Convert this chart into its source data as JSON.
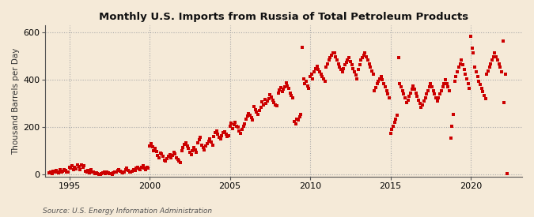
{
  "title": "Monthly U.S. Imports from Russia of Total Petroleum Products",
  "ylabel": "Thousand Barrels per Day",
  "source": "Source: U.S. Energy Information Administration",
  "bg_color": "#f5ead8",
  "plot_bg_color": "#f5ead8",
  "marker_color": "#cc0000",
  "grid_color": "#aaaaaa",
  "spine_color": "#555555",
  "ylim": [
    -10,
    630
  ],
  "yticks": [
    0,
    200,
    400,
    600
  ],
  "xlim": [
    1993.5,
    2023.2
  ],
  "xticks": [
    1995,
    2000,
    2005,
    2010,
    2015,
    2020
  ],
  "points": [
    [
      1993,
      10,
      5
    ],
    [
      1993,
      11,
      8
    ],
    [
      1993,
      12,
      3
    ],
    [
      1994,
      1,
      12
    ],
    [
      1994,
      2,
      8
    ],
    [
      1994,
      3,
      15
    ],
    [
      1994,
      4,
      10
    ],
    [
      1994,
      5,
      5
    ],
    [
      1994,
      6,
      18
    ],
    [
      1994,
      7,
      8
    ],
    [
      1994,
      8,
      12
    ],
    [
      1994,
      9,
      20
    ],
    [
      1994,
      10,
      15
    ],
    [
      1994,
      11,
      10
    ],
    [
      1994,
      12,
      8
    ],
    [
      1995,
      1,
      30
    ],
    [
      1995,
      2,
      25
    ],
    [
      1995,
      3,
      35
    ],
    [
      1995,
      4,
      20
    ],
    [
      1995,
      5,
      28
    ],
    [
      1995,
      6,
      22
    ],
    [
      1995,
      7,
      40
    ],
    [
      1995,
      8,
      32
    ],
    [
      1995,
      9,
      18
    ],
    [
      1995,
      10,
      38
    ],
    [
      1995,
      11,
      28
    ],
    [
      1995,
      12,
      35
    ],
    [
      1996,
      1,
      12
    ],
    [
      1996,
      2,
      8
    ],
    [
      1996,
      3,
      15
    ],
    [
      1996,
      4,
      5
    ],
    [
      1996,
      5,
      18
    ],
    [
      1996,
      6,
      10
    ],
    [
      1996,
      7,
      8
    ],
    [
      1996,
      8,
      3
    ],
    [
      1996,
      9,
      5
    ],
    [
      1996,
      10,
      2
    ],
    [
      1996,
      11,
      0
    ],
    [
      1996,
      12,
      0
    ],
    [
      1997,
      1,
      2
    ],
    [
      1997,
      2,
      5
    ],
    [
      1997,
      3,
      8
    ],
    [
      1997,
      4,
      3
    ],
    [
      1997,
      5,
      10
    ],
    [
      1997,
      6,
      6
    ],
    [
      1997,
      7,
      4
    ],
    [
      1997,
      8,
      2
    ],
    [
      1997,
      9,
      1
    ],
    [
      1997,
      10,
      5
    ],
    [
      1997,
      11,
      8
    ],
    [
      1997,
      12,
      10
    ],
    [
      1998,
      1,
      15
    ],
    [
      1998,
      2,
      20
    ],
    [
      1998,
      3,
      12
    ],
    [
      1998,
      4,
      8
    ],
    [
      1998,
      5,
      5
    ],
    [
      1998,
      6,
      10
    ],
    [
      1998,
      7,
      18
    ],
    [
      1998,
      8,
      25
    ],
    [
      1998,
      9,
      15
    ],
    [
      1998,
      10,
      10
    ],
    [
      1998,
      11,
      8
    ],
    [
      1998,
      12,
      12
    ],
    [
      1999,
      1,
      20
    ],
    [
      1999,
      2,
      15
    ],
    [
      1999,
      3,
      25
    ],
    [
      1999,
      4,
      30
    ],
    [
      1999,
      5,
      22
    ],
    [
      1999,
      6,
      18
    ],
    [
      1999,
      7,
      28
    ],
    [
      1999,
      8,
      35
    ],
    [
      1999,
      9,
      25
    ],
    [
      1999,
      10,
      20
    ],
    [
      1999,
      11,
      30
    ],
    [
      1999,
      12,
      25
    ],
    [
      2000,
      1,
      120
    ],
    [
      2000,
      2,
      130
    ],
    [
      2000,
      3,
      115
    ],
    [
      2000,
      4,
      100
    ],
    [
      2000,
      5,
      110
    ],
    [
      2000,
      6,
      95
    ],
    [
      2000,
      7,
      80
    ],
    [
      2000,
      8,
      70
    ],
    [
      2000,
      9,
      90
    ],
    [
      2000,
      10,
      85
    ],
    [
      2000,
      11,
      75
    ],
    [
      2000,
      12,
      60
    ],
    [
      2001,
      1,
      55
    ],
    [
      2001,
      2,
      65
    ],
    [
      2001,
      3,
      75
    ],
    [
      2001,
      4,
      82
    ],
    [
      2001,
      5,
      68
    ],
    [
      2001,
      6,
      78
    ],
    [
      2001,
      7,
      92
    ],
    [
      2001,
      8,
      85
    ],
    [
      2001,
      9,
      70
    ],
    [
      2001,
      10,
      62
    ],
    [
      2001,
      11,
      55
    ],
    [
      2001,
      12,
      50
    ],
    [
      2002,
      1,
      100
    ],
    [
      2002,
      2,
      112
    ],
    [
      2002,
      3,
      125
    ],
    [
      2002,
      4,
      132
    ],
    [
      2002,
      5,
      118
    ],
    [
      2002,
      6,
      108
    ],
    [
      2002,
      7,
      92
    ],
    [
      2002,
      8,
      82
    ],
    [
      2002,
      9,
      98
    ],
    [
      2002,
      10,
      112
    ],
    [
      2002,
      11,
      102
    ],
    [
      2002,
      12,
      92
    ],
    [
      2003,
      1,
      132
    ],
    [
      2003,
      2,
      145
    ],
    [
      2003,
      3,
      155
    ],
    [
      2003,
      4,
      122
    ],
    [
      2003,
      5,
      112
    ],
    [
      2003,
      6,
      102
    ],
    [
      2003,
      7,
      118
    ],
    [
      2003,
      8,
      128
    ],
    [
      2003,
      9,
      138
    ],
    [
      2003,
      10,
      148
    ],
    [
      2003,
      11,
      135
    ],
    [
      2003,
      12,
      122
    ],
    [
      2004,
      1,
      158
    ],
    [
      2004,
      2,
      175
    ],
    [
      2004,
      3,
      182
    ],
    [
      2004,
      4,
      168
    ],
    [
      2004,
      5,
      155
    ],
    [
      2004,
      6,
      148
    ],
    [
      2004,
      7,
      162
    ],
    [
      2004,
      8,
      175
    ],
    [
      2004,
      9,
      178
    ],
    [
      2004,
      10,
      168
    ],
    [
      2004,
      11,
      158
    ],
    [
      2004,
      12,
      162
    ],
    [
      2005,
      1,
      202
    ],
    [
      2005,
      2,
      215
    ],
    [
      2005,
      3,
      192
    ],
    [
      2005,
      4,
      208
    ],
    [
      2005,
      5,
      218
    ],
    [
      2005,
      6,
      202
    ],
    [
      2005,
      7,
      198
    ],
    [
      2005,
      8,
      182
    ],
    [
      2005,
      9,
      172
    ],
    [
      2005,
      10,
      188
    ],
    [
      2005,
      11,
      202
    ],
    [
      2005,
      12,
      212
    ],
    [
      2006,
      1,
      232
    ],
    [
      2006,
      2,
      245
    ],
    [
      2006,
      3,
      255
    ],
    [
      2006,
      4,
      248
    ],
    [
      2006,
      5,
      238
    ],
    [
      2006,
      6,
      228
    ],
    [
      2006,
      7,
      285
    ],
    [
      2006,
      8,
      272
    ],
    [
      2006,
      9,
      262
    ],
    [
      2006,
      10,
      252
    ],
    [
      2006,
      11,
      268
    ],
    [
      2006,
      12,
      282
    ],
    [
      2007,
      1,
      305
    ],
    [
      2007,
      2,
      292
    ],
    [
      2007,
      3,
      315
    ],
    [
      2007,
      4,
      298
    ],
    [
      2007,
      5,
      308
    ],
    [
      2007,
      6,
      320
    ],
    [
      2007,
      7,
      335
    ],
    [
      2007,
      8,
      325
    ],
    [
      2007,
      9,
      312
    ],
    [
      2007,
      10,
      302
    ],
    [
      2007,
      11,
      292
    ],
    [
      2007,
      12,
      288
    ],
    [
      2008,
      1,
      342
    ],
    [
      2008,
      2,
      355
    ],
    [
      2008,
      3,
      365
    ],
    [
      2008,
      4,
      348
    ],
    [
      2008,
      5,
      358
    ],
    [
      2008,
      6,
      368
    ],
    [
      2008,
      7,
      385
    ],
    [
      2008,
      8,
      372
    ],
    [
      2008,
      9,
      362
    ],
    [
      2008,
      10,
      342
    ],
    [
      2008,
      11,
      332
    ],
    [
      2008,
      12,
      322
    ],
    [
      2009,
      1,
      222
    ],
    [
      2009,
      2,
      212
    ],
    [
      2009,
      3,
      232
    ],
    [
      2009,
      4,
      228
    ],
    [
      2009,
      5,
      242
    ],
    [
      2009,
      6,
      252
    ],
    [
      2009,
      7,
      535
    ],
    [
      2009,
      8,
      402
    ],
    [
      2009,
      9,
      382
    ],
    [
      2009,
      10,
      392
    ],
    [
      2009,
      11,
      372
    ],
    [
      2009,
      12,
      362
    ],
    [
      2010,
      1,
      412
    ],
    [
      2010,
      2,
      422
    ],
    [
      2010,
      3,
      402
    ],
    [
      2010,
      4,
      432
    ],
    [
      2010,
      5,
      448
    ],
    [
      2010,
      6,
      458
    ],
    [
      2010,
      7,
      442
    ],
    [
      2010,
      8,
      432
    ],
    [
      2010,
      9,
      422
    ],
    [
      2010,
      10,
      412
    ],
    [
      2010,
      11,
      402
    ],
    [
      2010,
      12,
      392
    ],
    [
      2011,
      1,
      452
    ],
    [
      2011,
      2,
      465
    ],
    [
      2011,
      3,
      482
    ],
    [
      2011,
      4,
      492
    ],
    [
      2011,
      5,
      502
    ],
    [
      2011,
      6,
      512
    ],
    [
      2011,
      7,
      512
    ],
    [
      2011,
      8,
      498
    ],
    [
      2011,
      9,
      482
    ],
    [
      2011,
      10,
      468
    ],
    [
      2011,
      11,
      452
    ],
    [
      2011,
      12,
      442
    ],
    [
      2012,
      1,
      432
    ],
    [
      2012,
      2,
      445
    ],
    [
      2012,
      3,
      462
    ],
    [
      2012,
      4,
      472
    ],
    [
      2012,
      5,
      482
    ],
    [
      2012,
      6,
      492
    ],
    [
      2012,
      7,
      478
    ],
    [
      2012,
      8,
      462
    ],
    [
      2012,
      9,
      448
    ],
    [
      2012,
      10,
      432
    ],
    [
      2012,
      11,
      418
    ],
    [
      2012,
      12,
      402
    ],
    [
      2013,
      1,
      442
    ],
    [
      2013,
      2,
      462
    ],
    [
      2013,
      3,
      482
    ],
    [
      2013,
      4,
      492
    ],
    [
      2013,
      5,
      502
    ],
    [
      2013,
      6,
      512
    ],
    [
      2013,
      7,
      498
    ],
    [
      2013,
      8,
      482
    ],
    [
      2013,
      9,
      468
    ],
    [
      2013,
      10,
      452
    ],
    [
      2013,
      11,
      438
    ],
    [
      2013,
      12,
      422
    ],
    [
      2014,
      1,
      352
    ],
    [
      2014,
      2,
      365
    ],
    [
      2014,
      3,
      382
    ],
    [
      2014,
      4,
      392
    ],
    [
      2014,
      5,
      402
    ],
    [
      2014,
      6,
      412
    ],
    [
      2014,
      7,
      398
    ],
    [
      2014,
      8,
      382
    ],
    [
      2014,
      9,
      368
    ],
    [
      2014,
      10,
      352
    ],
    [
      2014,
      11,
      338
    ],
    [
      2014,
      12,
      322
    ],
    [
      2015,
      1,
      172
    ],
    [
      2015,
      2,
      188
    ],
    [
      2015,
      3,
      202
    ],
    [
      2015,
      4,
      218
    ],
    [
      2015,
      5,
      232
    ],
    [
      2015,
      6,
      248
    ],
    [
      2015,
      7,
      492
    ],
    [
      2015,
      8,
      382
    ],
    [
      2015,
      9,
      368
    ],
    [
      2015,
      10,
      352
    ],
    [
      2015,
      11,
      338
    ],
    [
      2015,
      12,
      322
    ],
    [
      2016,
      1,
      302
    ],
    [
      2016,
      2,
      312
    ],
    [
      2016,
      3,
      328
    ],
    [
      2016,
      4,
      342
    ],
    [
      2016,
      5,
      358
    ],
    [
      2016,
      6,
      372
    ],
    [
      2016,
      7,
      358
    ],
    [
      2016,
      8,
      342
    ],
    [
      2016,
      9,
      328
    ],
    [
      2016,
      10,
      312
    ],
    [
      2016,
      11,
      298
    ],
    [
      2016,
      12,
      282
    ],
    [
      2017,
      1,
      292
    ],
    [
      2017,
      2,
      308
    ],
    [
      2017,
      3,
      322
    ],
    [
      2017,
      4,
      338
    ],
    [
      2017,
      5,
      352
    ],
    [
      2017,
      6,
      368
    ],
    [
      2017,
      7,
      382
    ],
    [
      2017,
      8,
      368
    ],
    [
      2017,
      9,
      352
    ],
    [
      2017,
      10,
      338
    ],
    [
      2017,
      11,
      322
    ],
    [
      2017,
      12,
      308
    ],
    [
      2018,
      1,
      322
    ],
    [
      2018,
      2,
      338
    ],
    [
      2018,
      3,
      352
    ],
    [
      2018,
      4,
      368
    ],
    [
      2018,
      5,
      382
    ],
    [
      2018,
      6,
      398
    ],
    [
      2018,
      7,
      382
    ],
    [
      2018,
      8,
      368
    ],
    [
      2018,
      9,
      352
    ],
    [
      2018,
      10,
      152
    ],
    [
      2018,
      11,
      202
    ],
    [
      2018,
      12,
      252
    ],
    [
      2019,
      1,
      392
    ],
    [
      2019,
      2,
      412
    ],
    [
      2019,
      3,
      432
    ],
    [
      2019,
      4,
      452
    ],
    [
      2019,
      5,
      468
    ],
    [
      2019,
      6,
      482
    ],
    [
      2019,
      7,
      462
    ],
    [
      2019,
      8,
      442
    ],
    [
      2019,
      9,
      422
    ],
    [
      2019,
      10,
      402
    ],
    [
      2019,
      11,
      382
    ],
    [
      2019,
      12,
      362
    ],
    [
      2020,
      1,
      582
    ],
    [
      2020,
      2,
      532
    ],
    [
      2020,
      3,
      512
    ],
    [
      2020,
      4,
      452
    ],
    [
      2020,
      5,
      432
    ],
    [
      2020,
      6,
      412
    ],
    [
      2020,
      7,
      392
    ],
    [
      2020,
      8,
      378
    ],
    [
      2020,
      9,
      362
    ],
    [
      2020,
      10,
      348
    ],
    [
      2020,
      11,
      332
    ],
    [
      2020,
      12,
      318
    ],
    [
      2021,
      1,
      422
    ],
    [
      2021,
      2,
      438
    ],
    [
      2021,
      3,
      452
    ],
    [
      2021,
      4,
      468
    ],
    [
      2021,
      5,
      482
    ],
    [
      2021,
      6,
      498
    ],
    [
      2021,
      7,
      512
    ],
    [
      2021,
      8,
      498
    ],
    [
      2021,
      9,
      482
    ],
    [
      2021,
      10,
      468
    ],
    [
      2021,
      11,
      452
    ],
    [
      2021,
      12,
      432
    ],
    [
      2022,
      1,
      562
    ],
    [
      2022,
      2,
      302
    ],
    [
      2022,
      3,
      422
    ],
    [
      2022,
      4,
      2
    ]
  ]
}
